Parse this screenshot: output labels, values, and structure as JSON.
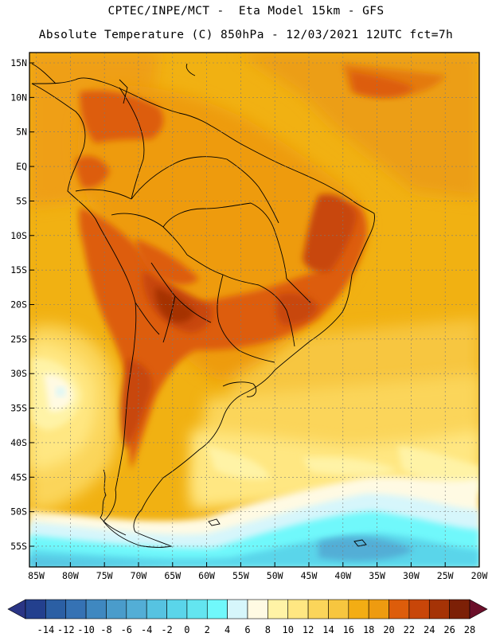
{
  "header": {
    "line1": "CPTEC/INPE/MCT -  Eta Model 15km - GFS",
    "line2": "Absolute Temperature (C) 850hPa - 12/03/2021 12UTC fct=7h"
  },
  "map": {
    "lat_labels": [
      "15N",
      "10N",
      "5N",
      "EQ",
      "5S",
      "10S",
      "15S",
      "20S",
      "25S",
      "30S",
      "35S",
      "40S",
      "45S",
      "50S",
      "55S"
    ],
    "lat_values": [
      15,
      10,
      5,
      0,
      -5,
      -10,
      -15,
      -20,
      -25,
      -30,
      -35,
      -40,
      -45,
      -50,
      -55
    ],
    "lon_labels": [
      "85W",
      "80W",
      "75W",
      "70W",
      "65W",
      "60W",
      "55W",
      "50W",
      "45W",
      "40W",
      "35W",
      "30W",
      "25W",
      "20W"
    ],
    "lon_values": [
      -85,
      -80,
      -75,
      -70,
      -65,
      -60,
      -55,
      -50,
      -45,
      -40,
      -35,
      -30,
      -25,
      -20
    ],
    "lat_range": [
      -58,
      16.5
    ],
    "lon_range": [
      -86,
      -20
    ]
  },
  "colorbar": {
    "unit": "C",
    "labels": [
      "-14",
      "-12",
      "-10",
      "-8",
      "-6",
      "-4",
      "-2",
      "0",
      "2",
      "4",
      "6",
      "8",
      "10",
      "12",
      "14",
      "16",
      "18",
      "20",
      "22",
      "24",
      "26",
      "28"
    ],
    "colors": [
      "#23408e",
      "#2b5fa4",
      "#3572b4",
      "#3f88c0",
      "#4a9ccb",
      "#53aed6",
      "#56c3e1",
      "#5ad5ea",
      "#63e5f0",
      "#70f8fb",
      "#d6f6fb",
      "#fffae3",
      "#fff3a6",
      "#ffe782",
      "#fbd55a",
      "#f7c63f",
      "#f3ad14",
      "#ee9b10",
      "#dd5d0b",
      "#c84609",
      "#a53306",
      "#7c2006"
    ]
  }
}
